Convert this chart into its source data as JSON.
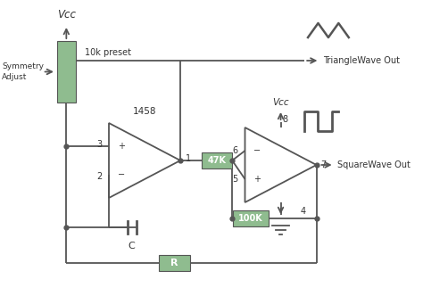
{
  "bg_color": "#ffffff",
  "line_color": "#555555",
  "component_fill": "#8fbc8f",
  "component_stroke": "#555555",
  "text_color": "#333333",
  "preset_label": "10k preset",
  "symmetry_label": "Symmetry\nAdjust",
  "op1_label": "1458",
  "r47k_label": "47K",
  "r100k_label": "100K",
  "r_label": "R",
  "c_label": "C",
  "vcc_label": "Vcc",
  "vcc2_label": "Vcc",
  "triangle_out_label": "TriangleWave Out",
  "square_out_label": "SquareWave Out"
}
